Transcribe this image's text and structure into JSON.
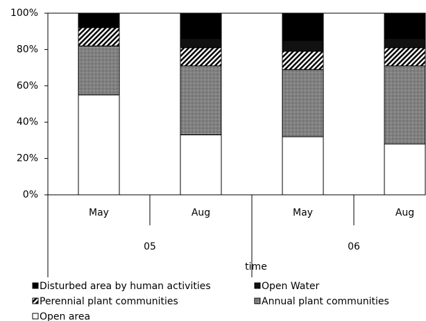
{
  "chart_data": {
    "type": "stacked_bar",
    "categories": [
      "May",
      "Aug",
      "May",
      "Aug"
    ],
    "groups": [
      {
        "label": "05",
        "span": 2
      },
      {
        "label": "06",
        "span": 2
      }
    ],
    "x_label": "time",
    "series": [
      {
        "name": "Open area",
        "color": "#ffffff",
        "pattern": "solid",
        "values": [
          55,
          33,
          32,
          28
        ]
      },
      {
        "name": "Annual plant communities",
        "color": "#7f7f7f",
        "pattern": "dots",
        "values": [
          27,
          38,
          37,
          43
        ]
      },
      {
        "name": "Perennial plant communities",
        "color": "#000000",
        "pattern": "hatch",
        "values": [
          10,
          10,
          10,
          10
        ]
      },
      {
        "name": "Open Water",
        "color": "#111111",
        "pattern": "solid",
        "values": [
          0,
          5,
          6,
          5
        ]
      },
      {
        "name": "Disturbed area by human activities",
        "color": "#000000",
        "pattern": "solid",
        "values": [
          8,
          14,
          15,
          14
        ]
      }
    ],
    "ylim": [
      0,
      100
    ],
    "yticks": [
      {
        "value": 0,
        "label": "0%"
      },
      {
        "value": 20,
        "label": "20%"
      },
      {
        "value": 40,
        "label": "40%"
      },
      {
        "value": 60,
        "label": "60%"
      },
      {
        "value": 80,
        "label": "80%"
      },
      {
        "value": 100,
        "label": "100%"
      }
    ],
    "grid": false
  }
}
